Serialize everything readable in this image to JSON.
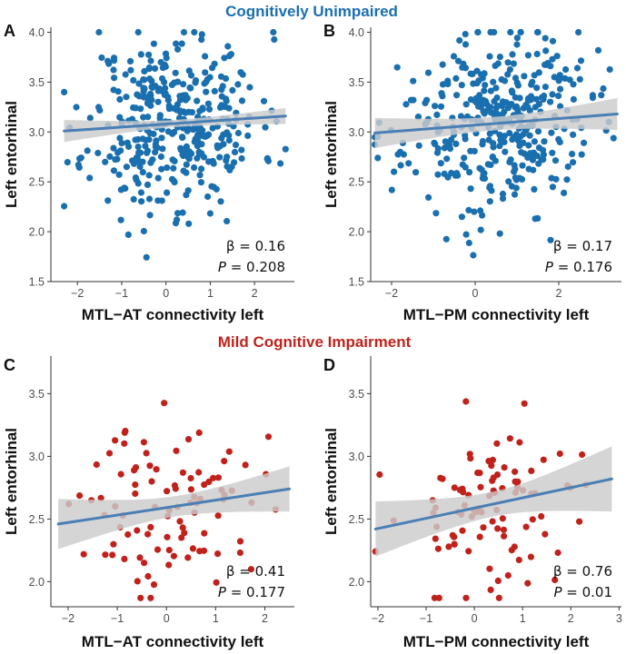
{
  "colors": {
    "cu": "#1a6faf",
    "mci": "#c0221b",
    "fit": "#4a7fb5",
    "ci": "#cccccc"
  },
  "groups": [
    {
      "title": "Cognitively Unimpaired",
      "color": "#1a6faf"
    },
    {
      "title": "Mild Cognitive Impairment",
      "color": "#c0221b"
    }
  ],
  "chart_data": [
    {
      "panel": "A",
      "type": "scatter",
      "group": "Cognitively Unimpaired",
      "xlabel": "MTL−AT connectivity left",
      "ylabel": "Left entorhinal",
      "xlim": [
        -2.6,
        2.9
      ],
      "ylim": [
        1.5,
        4.05
      ],
      "xticks": [
        -2,
        -1,
        0,
        1,
        2
      ],
      "yticks": [
        1.5,
        2.0,
        2.5,
        3.0,
        3.5,
        4.0
      ],
      "xtick_labels": [
        "−2",
        "−1",
        "0",
        "1",
        "2"
      ],
      "ytick_labels": [
        "1.5",
        "2.0",
        "2.5",
        "3.0",
        "3.5",
        "4.0"
      ],
      "fit": {
        "x": [
          -2.3,
          2.7
        ],
        "y": [
          3.01,
          3.16
        ]
      },
      "ci": {
        "upper": [
          3.12,
          3.24
        ],
        "lower": [
          2.9,
          3.08
        ]
      },
      "beta_label": "β",
      "beta_value": "0.16",
      "p_label": "P",
      "p_value": "0.208",
      "n_points": 380,
      "seed": 11
    },
    {
      "panel": "B",
      "type": "scatter",
      "group": "Cognitively Unimpaired",
      "xlabel": "MTL−PM connectivity left",
      "ylabel": "Left entorhinal",
      "xlim": [
        -2.5,
        3.5
      ],
      "ylim": [
        1.5,
        4.05
      ],
      "xticks": [
        -2,
        0,
        2
      ],
      "yticks": [
        1.5,
        2.0,
        2.5,
        3.0,
        3.5,
        4.0
      ],
      "xtick_labels": [
        "−2",
        "0",
        "2"
      ],
      "ytick_labels": [
        "1.5",
        "2.0",
        "2.5",
        "3.0",
        "3.5",
        "4.0"
      ],
      "fit": {
        "x": [
          -2.4,
          3.4
        ],
        "y": [
          2.99,
          3.18
        ]
      },
      "ci": {
        "upper": [
          3.14,
          3.34
        ],
        "lower": [
          2.84,
          3.02
        ]
      },
      "beta_label": "β",
      "beta_value": "0.17",
      "p_label": "P",
      "p_value": "0.176",
      "n_points": 380,
      "seed": 23
    },
    {
      "panel": "C",
      "type": "scatter",
      "group": "Mild Cognitive Impairment",
      "xlabel": "MTL−AT connectivity left",
      "ylabel": "Left entorhinal",
      "xlim": [
        -2.35,
        2.6
      ],
      "ylim": [
        1.8,
        3.8
      ],
      "xticks": [
        -2,
        -1,
        0,
        1,
        2
      ],
      "yticks": [
        2.0,
        2.5,
        3.0,
        3.5
      ],
      "xtick_labels": [
        "−2",
        "−1",
        "0",
        "1",
        "2"
      ],
      "ytick_labels": [
        "2.0",
        "2.5",
        "3.0",
        "3.5"
      ],
      "fit": {
        "x": [
          -2.2,
          2.5
        ],
        "y": [
          2.46,
          2.74
        ]
      },
      "ci": {
        "upper": [
          2.66,
          2.92
        ],
        "lower": [
          2.26,
          2.56
        ]
      },
      "beta_label": "β",
      "beta_value": "0.41",
      "p_label": "P",
      "p_value": "0.177",
      "n_points": 95,
      "seed": 37
    },
    {
      "panel": "D",
      "type": "scatter",
      "group": "Mild Cognitive Impairment",
      "xlabel": "MTL−PM connectivity left",
      "ylabel": "Left entorhinal",
      "xlim": [
        -2.15,
        3.05
      ],
      "ylim": [
        1.8,
        3.8
      ],
      "xticks": [
        -2,
        -1,
        0,
        1,
        2,
        3
      ],
      "yticks": [
        2.0,
        2.5,
        3.0,
        3.5
      ],
      "xtick_labels": [
        "−2",
        "−1",
        "0",
        "1",
        "2",
        "3"
      ],
      "ytick_labels": [
        "2.0",
        "2.5",
        "3.0",
        "3.5"
      ],
      "fit": {
        "x": [
          -2.05,
          2.85
        ],
        "y": [
          2.42,
          2.82
        ]
      },
      "ci": {
        "upper": [
          2.64,
          3.08
        ],
        "lower": [
          2.2,
          2.56
        ]
      },
      "beta_label": "β",
      "beta_value": "0.76",
      "p_label": "P",
      "p_value": "0.01",
      "n_points": 95,
      "seed": 53
    }
  ]
}
